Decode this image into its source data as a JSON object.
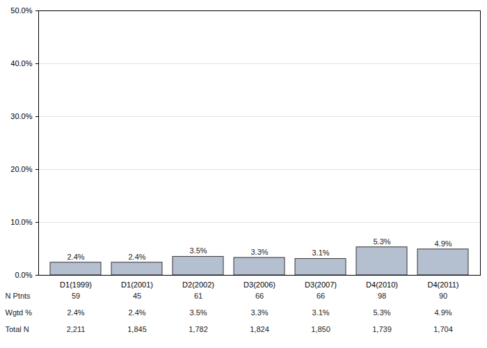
{
  "chart_data": {
    "type": "bar",
    "categories": [
      "D1(1999)",
      "D1(2001)",
      "D2(2002)",
      "D3(2006)",
      "D3(2007)",
      "D4(2010)",
      "D4(2011)"
    ],
    "values": [
      2.4,
      2.4,
      3.5,
      3.3,
      3.1,
      5.3,
      4.9
    ],
    "value_labels": [
      "2.4%",
      "2.4%",
      "3.5%",
      "3.3%",
      "3.1%",
      "5.3%",
      "4.9%"
    ],
    "color": "#b4c0cf",
    "ylim": [
      0,
      50
    ],
    "yticks": [
      {
        "value": 0,
        "label": "0.0%"
      },
      {
        "value": 10,
        "label": "10.0%"
      },
      {
        "value": 20,
        "label": "20.0%"
      },
      {
        "value": 30,
        "label": "30.0%"
      },
      {
        "value": 40,
        "label": "40.0%"
      },
      {
        "value": 50,
        "label": "50.0%"
      }
    ],
    "grid": true,
    "data_labels": true,
    "table": [
      {
        "label": "N Ptnts",
        "values": [
          59,
          45,
          61,
          66,
          66,
          98,
          90
        ]
      },
      {
        "label": "Wgtd %",
        "values": [
          2.4,
          2.4,
          3.5,
          3.3,
          3.1,
          5.3,
          4.9
        ],
        "value_labels": [
          "2.4%",
          "2.4%",
          "3.5%",
          "3.3%",
          "3.1%",
          "5.3%",
          "4.9%"
        ]
      },
      {
        "label": "Total N",
        "values": [
          2211,
          1845,
          1782,
          1824,
          1850,
          1739,
          1704
        ],
        "value_labels": [
          "2,211",
          "1,845",
          "1,782",
          "1,824",
          "1,850",
          "1,739",
          "1,704"
        ]
      }
    ]
  }
}
